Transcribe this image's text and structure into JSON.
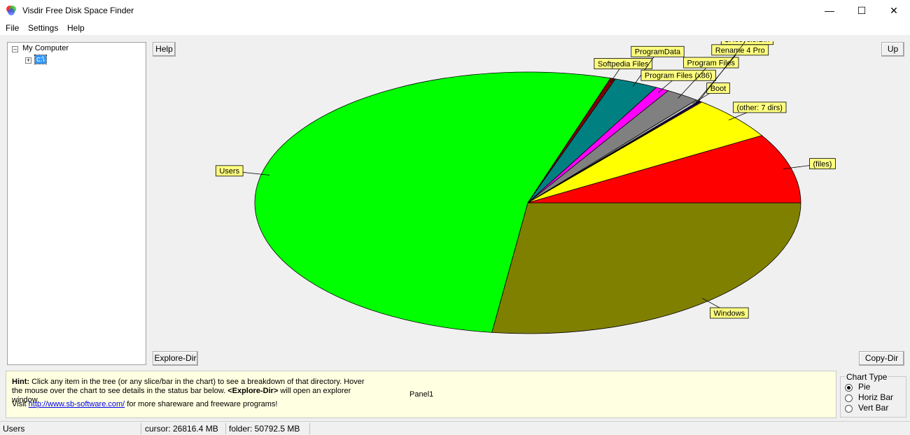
{
  "window": {
    "title": "Visdir Free Disk Space Finder"
  },
  "menu": [
    "File",
    "Settings",
    "Help"
  ],
  "tree": {
    "root": "My Computer",
    "child": "c:\\"
  },
  "buttons": {
    "help": "Help",
    "up": "Up",
    "explore": "Explore-Dir",
    "copy": "Copy-Dir"
  },
  "chart_data": {
    "type": "pie",
    "categories": [
      "Windows",
      "Users",
      "Softpedia Files",
      "ProgramData",
      "Program Files (x86)",
      "Program Files",
      "Boot",
      "Rename 4 Pro",
      "$Recycle.Bin",
      "(other: 7 dirs)",
      "(files)"
    ],
    "values": [
      27.1,
      52.8,
      0.3,
      2.6,
      0.8,
      2.0,
      0.2,
      0.1,
      0.1,
      5.4,
      8.6
    ],
    "colors": [
      "#808000",
      "#00ff00",
      "#800000",
      "#008080",
      "#ff00ff",
      "#808080",
      "#c0c0c0",
      "#000080",
      "#800080",
      "#ffff00",
      "#ff0000"
    ]
  },
  "hint": {
    "label": "Hint:",
    "text1": "Click any item in the tree (or any slice/bar in the chart) to see a breakdown of that directory. Hover the mouse over the chart to see details in the status bar below.",
    "bold": "<Explore-Dir>",
    "text2": "will open an explorer window.",
    "visit": "Visit",
    "link": "http://www.sb-software.com/",
    "text3": "for more shareware and freeware programs!"
  },
  "panel": "Panel1",
  "chart_type": {
    "title": "Chart Type",
    "options": [
      "Pie",
      "Horiz Bar",
      "Vert Bar"
    ],
    "selected": 0
  },
  "status": [
    "Users",
    "cursor: 26816.4 MB",
    "folder: 50792.5 MB"
  ]
}
